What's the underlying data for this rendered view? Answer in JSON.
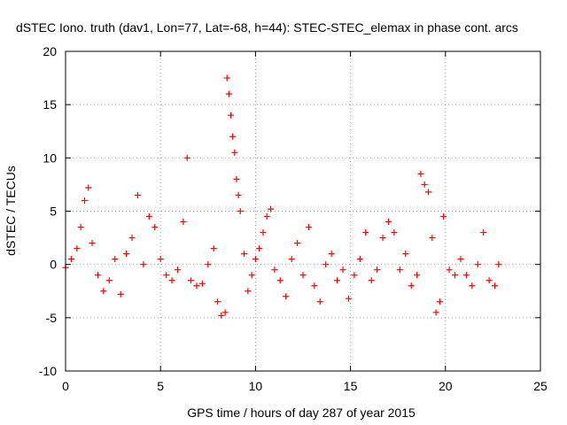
{
  "chart_data": {
    "type": "scatter",
    "title": "dSTEC Iono. truth (dav1, Lon=77, Lat=-68, h=44): STEC-STEC_elemax in phase cont. arcs",
    "xlabel": "GPS time / hours of day 287 of year 2015",
    "ylabel": "dSTEC  / TECUs",
    "xlim": [
      0,
      25
    ],
    "ylim": [
      -10,
      20
    ],
    "xticks": [
      0,
      5,
      10,
      15,
      20,
      25
    ],
    "yticks": [
      -10,
      -5,
      0,
      5,
      10,
      15,
      20
    ],
    "grid": true,
    "marker": "+",
    "color": "#ff0000",
    "series": [
      {
        "values_approx": true,
        "x": [
          0.0,
          0.3,
          0.6,
          0.8,
          1.0,
          1.2,
          1.4,
          1.7,
          2.0,
          2.3,
          2.6,
          2.9,
          3.2,
          3.5,
          3.8,
          4.1,
          4.4,
          4.7,
          5.0,
          5.3,
          5.6,
          5.9,
          6.2,
          6.4,
          6.6,
          6.9,
          7.2,
          7.5,
          7.8,
          8.0,
          8.2,
          8.4,
          8.5,
          8.6,
          8.7,
          8.8,
          8.9,
          9.0,
          9.1,
          9.2,
          9.4,
          9.6,
          9.8,
          10.0,
          10.2,
          10.4,
          10.6,
          10.8,
          11.0,
          11.3,
          11.6,
          11.9,
          12.2,
          12.5,
          12.8,
          13.1,
          13.4,
          13.7,
          14.0,
          14.3,
          14.6,
          14.9,
          15.2,
          15.5,
          15.8,
          16.1,
          16.4,
          16.7,
          17.0,
          17.3,
          17.6,
          17.9,
          18.2,
          18.5,
          18.7,
          18.9,
          19.1,
          19.3,
          19.5,
          19.7,
          19.9,
          20.2,
          20.5,
          20.8,
          21.1,
          21.4,
          21.7,
          22.0,
          22.3,
          22.6,
          22.8
        ],
        "y": [
          -0.3,
          0.5,
          1.5,
          3.5,
          6.0,
          7.2,
          2.0,
          -1.0,
          -2.5,
          -1.5,
          0.5,
          -2.8,
          1.0,
          2.5,
          6.5,
          0.0,
          4.5,
          3.5,
          0.5,
          -1.0,
          -1.5,
          -0.5,
          4.0,
          10.0,
          -1.5,
          -2.0,
          -1.8,
          0.0,
          1.5,
          -3.5,
          -4.8,
          -4.5,
          17.5,
          16.0,
          14.0,
          12.0,
          10.5,
          8.0,
          6.5,
          5.0,
          1.0,
          -2.5,
          -1.0,
          0.5,
          1.5,
          3.0,
          4.5,
          5.2,
          -0.5,
          -1.5,
          -3.0,
          0.5,
          2.0,
          -1.0,
          3.5,
          -2.0,
          -3.5,
          0.0,
          1.0,
          -1.5,
          -0.5,
          -3.2,
          -1.0,
          0.5,
          3.0,
          -1.5,
          -0.5,
          2.5,
          4.0,
          3.0,
          -0.5,
          1.0,
          -2.0,
          -1.0,
          8.5,
          7.5,
          6.8,
          2.5,
          -4.5,
          -3.5,
          4.5,
          -0.5,
          -1.0,
          0.5,
          -1.0,
          -2.0,
          0.0,
          3.0,
          -1.5,
          -2.0,
          0.0
        ]
      }
    ]
  }
}
